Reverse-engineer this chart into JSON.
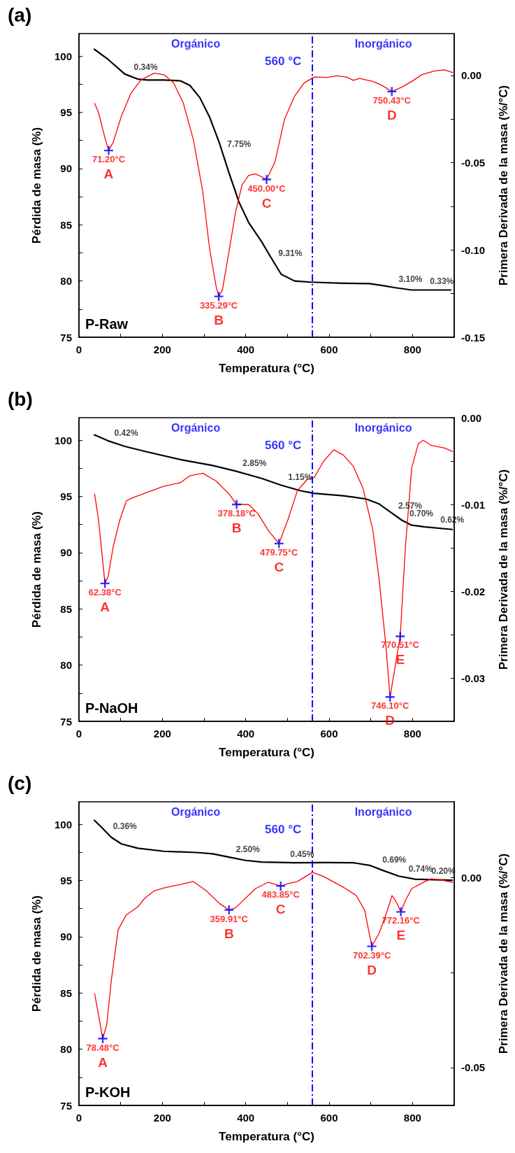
{
  "chart_data": [
    {
      "type": "line",
      "title": "(a)",
      "xlabel": "Temperatura (°C)",
      "ylabel": "Pérdida de masa (%)",
      "y2label": "Primera Derivada de la masa (%/°C)",
      "marker": "none",
      "xlim": [
        0,
        900
      ],
      "xticks": [
        0,
        {
          "value": 100,
          "label": null
        },
        200,
        {
          "value": 300,
          "label": null
        },
        400,
        {
          "value": 500,
          "label": null
        },
        600,
        {
          "value": 700,
          "label": null
        },
        800
      ],
      "ylim": [
        75,
        102
      ],
      "yticks": [
        75,
        {
          "value": 77.5,
          "label": null
        },
        80,
        {
          "value": 82.5,
          "label": null
        },
        85,
        {
          "value": 87.5,
          "label": null
        },
        90,
        {
          "value": 92.5,
          "label": null
        },
        95,
        {
          "value": 97.5,
          "label": null
        },
        100
      ],
      "y2lim": [
        -0.15,
        0.024
      ],
      "y2ticks": [
        -0.15,
        {
          "value": -0.125,
          "label": null
        },
        {
          "value": -0.1,
          "label": "-0.10"
        },
        {
          "value": -0.075,
          "label": null
        },
        -0.05,
        {
          "value": -0.025,
          "label": null
        },
        {
          "value": 0,
          "label": "0.00"
        }
      ],
      "series": [
        {
          "color": "#000000",
          "x": [
            37,
            70,
            110,
            141,
            164,
            204,
            243,
            266,
            290,
            313,
            337,
            360,
            384,
            407,
            438,
            462,
            485,
            517,
            556,
            634,
            697,
            728,
            759,
            798,
            892
          ],
          "values": [
            100.6,
            99.7,
            98.4,
            97.95,
            97.87,
            97.87,
            97.8,
            97.4,
            96.3,
            94.6,
            92.25,
            89.6,
            87.0,
            85.2,
            83.5,
            82.0,
            80.6,
            80.0,
            79.9,
            79.8,
            79.77,
            79.6,
            79.4,
            79.2,
            79.2
          ]
        },
        {
          "color": "#ff0000",
          "axis": "y2",
          "x": [
            37.6,
            47,
            63,
            71.2,
            82,
            102,
            125,
            149,
            180,
            204,
            227,
            250,
            274,
            297,
            313,
            329,
            335.3,
            344,
            360,
            376,
            391,
            407,
            423,
            438,
            450,
            470,
            493,
            517,
            540,
            564,
            595,
            618,
            642,
            658,
            673,
            705,
            728,
            750.4,
            775,
            798,
            822,
            853,
            877,
            896
          ],
          "values": [
            -0.016,
            -0.0213,
            -0.0364,
            -0.043,
            -0.0383,
            -0.0232,
            -0.01,
            -0.0025,
            0.0013,
            0.0004,
            -0.0043,
            -0.0157,
            -0.0364,
            -0.0666,
            -0.0987,
            -0.121,
            -0.1266,
            -0.123,
            -0.1006,
            -0.0779,
            -0.0628,
            -0.0572,
            -0.0564,
            -0.058,
            -0.0596,
            -0.0496,
            -0.0251,
            -0.0119,
            -0.0043,
            -0.0009,
            -0.0011,
            -0.0002,
            -0.0009,
            -0.0028,
            -0.0017,
            -0.0034,
            -0.0058,
            -0.0092,
            -0.0066,
            -0.0034,
            0.0004,
            0.0026,
            0.0032,
            0.0017
          ]
        },
        {
          "type": "scatter",
          "color": "#0000ff",
          "axis": "y2",
          "marker": "cross",
          "x": [
            71.2,
            335.29,
            450,
            750.43
          ],
          "values": [
            -0.043,
            -0.1266,
            -0.0596,
            -0.0092
          ]
        }
      ],
      "ref_lines": [
        {
          "axis": "x",
          "value": 560,
          "label": "560 °C",
          "color": "#0000ff",
          "line_style": "dashed"
        }
      ],
      "annotations": [
        "71.20°C",
        "A",
        "335.29°C",
        "B",
        "450.00°C",
        "C",
        "750.43°C",
        "D",
        {
          "text": "0.34%",
          "x": 120,
          "y": 98.25
        },
        {
          "text": "7.75%",
          "x": 344,
          "y": 91.45
        },
        {
          "text": "9.31%",
          "x": 466.5,
          "y": 81.7
        },
        {
          "text": "3.10%",
          "x": 755,
          "y": 79.42
        },
        {
          "text": "0.33%",
          "x": 830,
          "y": 79.2
        },
        "Orgánico",
        "Inorgánico",
        "P-Raw"
      ]
    },
    {
      "type": "line",
      "title": "(b)",
      "xlabel": "Temperatura (°C)",
      "ylabel": "Pérdida de masa (%)",
      "y2label": "Primera Derivada de la masa (%/°C)",
      "marker": "none",
      "xlim": [
        0,
        900
      ],
      "xticks": [
        0,
        {
          "value": 100,
          "label": null
        },
        200,
        {
          "value": 300,
          "label": null
        },
        400,
        {
          "value": 500,
          "label": null
        },
        600,
        {
          "value": 700,
          "label": null
        },
        800
      ],
      "ylim": [
        75,
        102
      ],
      "yticks": [
        75,
        {
          "value": 77.5,
          "label": null
        },
        80,
        {
          "value": 82.5,
          "label": null
        },
        85,
        {
          "value": 87.5,
          "label": null
        },
        90,
        {
          "value": 92.5,
          "label": null
        },
        95,
        {
          "value": 97.5,
          "label": null
        },
        100
      ],
      "y2lim": [
        -0.035,
        0
      ],
      "y2ticks": [
        -0.03,
        {
          "value": -0.025,
          "label": null
        },
        -0.02,
        {
          "value": -0.015,
          "label": null
        },
        -0.01,
        {
          "value": -0.005,
          "label": null
        },
        {
          "value": 0,
          "label": "0.00"
        }
      ],
      "series": [
        {
          "color": "#000000",
          "x": [
            37,
            70,
            110,
            164,
            243,
            321,
            376,
            438,
            485,
            532,
            564,
            634,
            689,
            720,
            751,
            775,
            798,
            830,
            895
          ],
          "values": [
            100.47,
            99.94,
            99.45,
            98.95,
            98.28,
            97.75,
            97.25,
            96.6,
            96.0,
            95.5,
            95.27,
            95.06,
            94.77,
            94.33,
            93.5,
            92.87,
            92.44,
            92.29,
            92.06
          ]
        },
        {
          "color": "#ff0000",
          "axis": "y2",
          "x": [
            37.6,
            47,
            55,
            62.38,
            70,
            82,
            98,
            113.5,
            125,
            164,
            204,
            243,
            266,
            297,
            329,
            360,
            378.18,
            407,
            430,
            454,
            479.75,
            501,
            524,
            548,
            564,
            587,
            611,
            634,
            658,
            681,
            705,
            720,
            736,
            746.1,
            759,
            770.51,
            783,
            798,
            814,
            826,
            845,
            877,
            896
          ],
          "values": [
            -0.0088,
            -0.0118,
            -0.0156,
            -0.0191,
            -0.0183,
            -0.0149,
            -0.0118,
            -0.0096,
            -0.0093,
            -0.0086,
            -0.0079,
            -0.0075,
            -0.0067,
            -0.0064,
            -0.0073,
            -0.0088,
            -0.01,
            -0.01,
            -0.0111,
            -0.013,
            -0.0145,
            -0.0118,
            -0.0084,
            -0.0071,
            -0.0069,
            -0.005,
            -0.0037,
            -0.0043,
            -0.0056,
            -0.0081,
            -0.013,
            -0.0187,
            -0.0262,
            -0.0322,
            -0.0285,
            -0.0252,
            -0.0149,
            -0.0058,
            -0.003,
            -0.0026,
            -0.0032,
            -0.0035,
            -0.0039
          ]
        },
        {
          "type": "scatter",
          "color": "#0000ff",
          "axis": "y2",
          "marker": "cross",
          "x": [
            62.38,
            378.18,
            479.75,
            746.1,
            770.51
          ],
          "values": [
            -0.0191,
            -0.01,
            -0.0145,
            -0.0322,
            -0.0252
          ]
        }
      ],
      "ref_lines": [
        {
          "axis": "x",
          "value": 560,
          "label": "560 °C",
          "color": "#0000ff",
          "line_style": "dashed"
        }
      ],
      "annotations": [
        "62.38°C",
        "A",
        "378.18°C",
        "B",
        "479.75°C",
        "C",
        "746.10°C",
        "D",
        "770.51°C",
        "E",
        {
          "text": "0.42%",
          "x": 73,
          "y": 99.9
        },
        {
          "text": "2.85%",
          "x": 381,
          "y": 97.2
        },
        {
          "text": "1.15%",
          "x": 490,
          "y": 95.95
        },
        {
          "text": "2.57%",
          "x": 754,
          "y": 93.42
        },
        {
          "text": "0.70%",
          "x": 781,
          "y": 92.75
        },
        {
          "text": "0.62%",
          "x": 855,
          "y": 92.2
        },
        "Orgánico",
        "Inorgánico",
        "P-NaOH"
      ]
    },
    {
      "type": "line",
      "title": "(c)",
      "xlabel": "Temperatura (°C)",
      "ylabel": "Pérdida de masa (%)",
      "y2label": "Primera Derivada de la masa (%/°C)",
      "marker": "none",
      "xlim": [
        0,
        900
      ],
      "xticks": [
        0,
        {
          "value": 100,
          "label": null
        },
        200,
        {
          "value": 300,
          "label": null
        },
        400,
        {
          "value": 500,
          "label": null
        },
        600,
        {
          "value": 700,
          "label": null
        },
        800
      ],
      "ylim": [
        75,
        102
      ],
      "yticks": [
        75,
        {
          "value": 77.5,
          "label": null
        },
        80,
        {
          "value": 82.5,
          "label": null
        },
        85,
        {
          "value": 87.5,
          "label": null
        },
        90,
        {
          "value": 92.5,
          "label": null
        },
        95,
        {
          "value": 97.5,
          "label": null
        },
        100
      ],
      "y2lim": [
        -0.06,
        0.02
      ],
      "y2ticks": [
        -0.05,
        {
          "value": -0.025,
          "label": null
        },
        {
          "value": 0,
          "label": "0.00"
        }
      ],
      "series": [
        {
          "color": "#000000",
          "x": [
            37,
            55,
            78,
            102,
            141,
            204,
            282,
            321,
            360,
            399,
            438,
            517,
            595,
            658,
            697,
            728,
            767,
            806,
            895
          ],
          "values": [
            100.35,
            99.7,
            98.83,
            98.25,
            97.87,
            97.6,
            97.49,
            97.37,
            97.08,
            96.79,
            96.64,
            96.58,
            96.6,
            96.58,
            96.35,
            95.91,
            95.39,
            95.12,
            95.03
          ]
        },
        {
          "color": "#ff0000",
          "axis": "y2",
          "x": [
            37.6,
            47,
            57,
            66.5,
            78,
            94,
            113.5,
            141,
            157,
            180,
            204,
            243,
            274,
            305,
            337,
            359.91,
            376,
            423,
            454,
            483.85,
            501,
            524,
            560,
            587,
            634,
            665,
            685,
            702.39,
            720,
            740,
            751,
            759,
            772.16,
            783,
            798,
            830,
            845,
            869,
            896
          ],
          "values": [
            -0.0306,
            -0.0362,
            -0.0424,
            -0.0388,
            -0.0267,
            -0.0137,
            -0.0098,
            -0.0077,
            -0.0055,
            -0.0035,
            -0.0027,
            -0.0018,
            -0.001,
            -0.0034,
            -0.0068,
            -0.0085,
            -0.0079,
            -0.0029,
            -0.0012,
            -0.0022,
            -0.0016,
            -0.001,
            0.0014,
            0.0003,
            -0.0025,
            -0.0047,
            -0.0085,
            -0.0181,
            -0.0146,
            -0.0085,
            -0.0047,
            -0.006,
            -0.009,
            -0.006,
            -0.0029,
            -0.001,
            -0.0003,
            -0.0006,
            -0.0012
          ]
        },
        {
          "type": "scatter",
          "color": "#0000ff",
          "axis": "y2",
          "marker": "cross",
          "x": [
            57,
            359.91,
            483.85,
            702.39,
            772.16
          ],
          "values": [
            -0.0424,
            -0.0085,
            -0.0022,
            -0.0181,
            -0.009
          ]
        }
      ],
      "ref_lines": [
        {
          "axis": "x",
          "value": 560,
          "label": "560 °C",
          "color": "#0000ff",
          "line_style": "dashed"
        }
      ],
      "annotations": [
        "78.48°C",
        "A",
        "359.91°C",
        "B",
        "483.85°C",
        "C",
        "702.39°C",
        "D",
        "772.16°C",
        "E",
        {
          "text": "0.36%",
          "x": 70,
          "y": 99.1
        },
        {
          "text": "2.50%",
          "x": 365,
          "y": 97.04
        },
        {
          "text": "0.45%",
          "x": 495,
          "y": 96.6
        },
        {
          "text": "0.69%",
          "x": 716,
          "y": 96.1
        },
        {
          "text": "0.74%",
          "x": 779,
          "y": 95.3
        },
        {
          "text": "0.20%",
          "x": 834,
          "y": 95.1
        },
        "Orgánico",
        "Inorgánico",
        "P-KOH"
      ]
    }
  ]
}
